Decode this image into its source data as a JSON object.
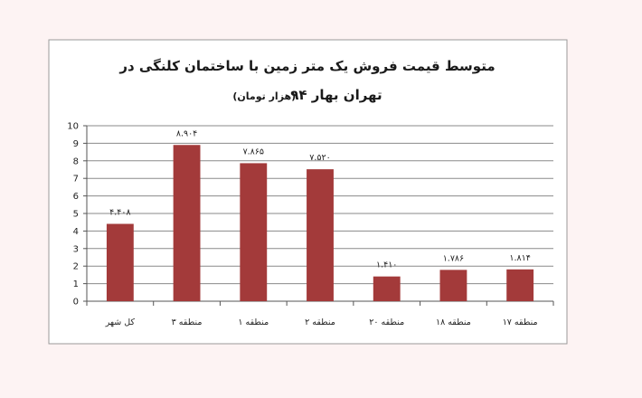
{
  "chart_data": {
    "type": "bar",
    "title_line1": "متوسط قیمت فروش یک متر زمین با ساختمان کلنگی در",
    "title_line2_main": "تهران بهار ۹۴",
    "title_line2_unit": "(هزار تومان)",
    "categories": [
      "کل شهر",
      "منطقه ۳",
      "منطقه ۱",
      "منطقه ۲",
      "منطقه ۲۰",
      "منطقه ۱۸",
      "منطقه ۱۷"
    ],
    "values": [
      4.408,
      8.904,
      7.865,
      7.52,
      1.41,
      1.786,
      1.814
    ],
    "data_labels": [
      "۴.۴۰۸",
      "۸.۹۰۴",
      "۷.۸۶۵",
      "۷.۵۲۰",
      "۱.۴۱۰",
      "۱.۷۸۶",
      "۱.۸۱۴"
    ],
    "ylim": [
      0,
      10
    ],
    "yticks": [
      0,
      1,
      2,
      3,
      4,
      5,
      6,
      7,
      8,
      9,
      10
    ],
    "grid": true,
    "bar_color": "#a33a3a",
    "grid_color": "#8a8a8a",
    "plot_background": "#ffffff",
    "page_background": "#fdf3f3"
  }
}
